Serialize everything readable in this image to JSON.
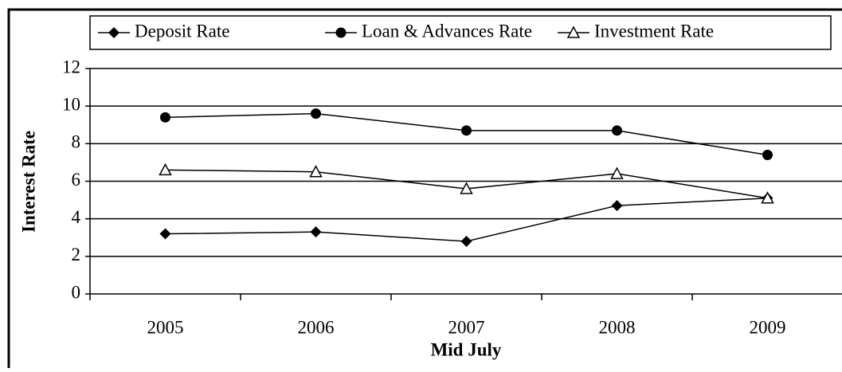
{
  "chart_data": {
    "type": "line",
    "x_label": "Mid July",
    "y_label": "Interest Rate",
    "categories": [
      "2005",
      "2006",
      "2007",
      "2008",
      "2009"
    ],
    "series": [
      {
        "name": "Deposit Rate",
        "color": "#000000",
        "marker": "diamond",
        "values": [
          3.2,
          3.3,
          2.8,
          4.7,
          5.1
        ]
      },
      {
        "name": "Loan & Advances Rate",
        "color": "#000000",
        "marker": "circle",
        "values": [
          9.4,
          9.6,
          8.7,
          8.7,
          7.4
        ]
      },
      {
        "name": "Investment Rate",
        "color": "#000000",
        "marker": "triangle",
        "values": [
          6.6,
          6.5,
          5.6,
          6.4,
          5.1
        ]
      }
    ],
    "ylim": [
      0,
      12
    ],
    "yticks": [
      0,
      2,
      4,
      6,
      8,
      10,
      12
    ],
    "grid": true,
    "legend": "top"
  }
}
